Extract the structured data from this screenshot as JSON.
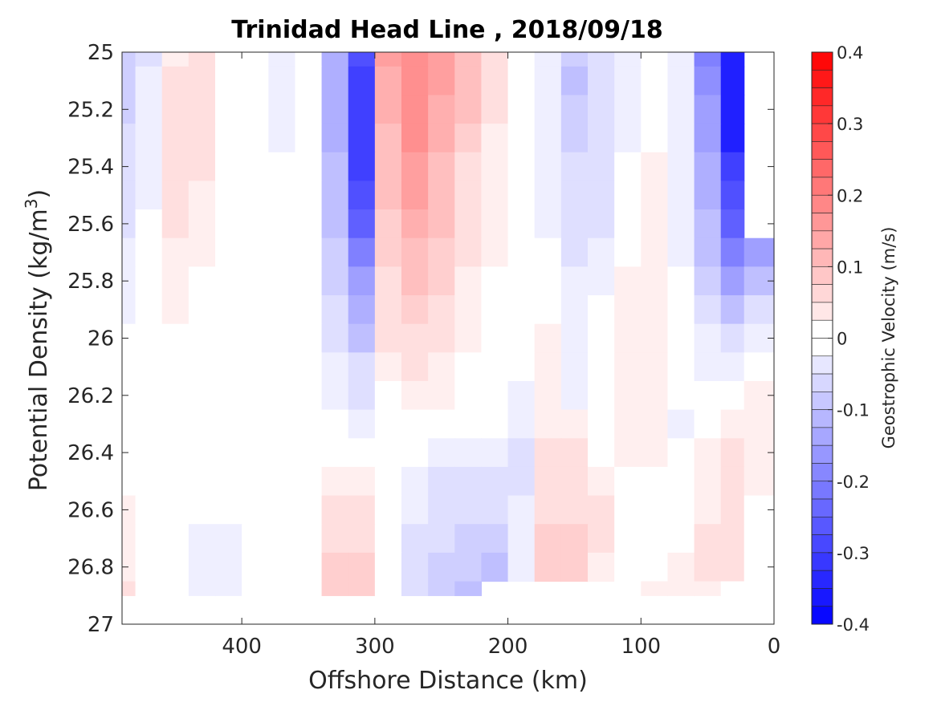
{
  "chart_data": {
    "type": "heatmap",
    "title": "Trinidad Head Line , 2018/09/18",
    "xlabel": "Offshore Distance (km)",
    "ylabel": "Potential Density (kg/m",
    "ylabel_superscript": "3",
    "ylabel_suffix": ")",
    "colorbar_label": "Geostrophic Velocity (m/s)",
    "xlim": [
      490,
      0
    ],
    "ylim": [
      25,
      27
    ],
    "x_reversed": true,
    "y_reversed": true,
    "x_ticks": [
      {
        "value": 400,
        "label": "400"
      },
      {
        "value": 300,
        "label": "300"
      },
      {
        "value": 200,
        "label": "200"
      },
      {
        "value": 100,
        "label": "100"
      },
      {
        "value": 0,
        "label": "0"
      }
    ],
    "y_ticks": [
      {
        "value": 25.0,
        "label": "25"
      },
      {
        "value": 25.2,
        "label": "25.2"
      },
      {
        "value": 25.4,
        "label": "25.4"
      },
      {
        "value": 25.6,
        "label": "25.6"
      },
      {
        "value": 25.8,
        "label": "25.8"
      },
      {
        "value": 26.0,
        "label": "26"
      },
      {
        "value": 26.2,
        "label": "26.2"
      },
      {
        "value": 26.4,
        "label": "26.4"
      },
      {
        "value": 26.6,
        "label": "26.6"
      },
      {
        "value": 26.8,
        "label": "26.8"
      },
      {
        "value": 27.0,
        "label": "27"
      }
    ],
    "colorbar_ticks": [
      {
        "value": 0.4,
        "label": "0.4"
      },
      {
        "value": 0.3,
        "label": "0.3"
      },
      {
        "value": 0.2,
        "label": "0.2"
      },
      {
        "value": 0.1,
        "label": "0.1"
      },
      {
        "value": 0.0,
        "label": "0"
      },
      {
        "value": -0.1,
        "label": "-0.1"
      },
      {
        "value": -0.2,
        "label": "-0.2"
      },
      {
        "value": -0.3,
        "label": "-0.3"
      },
      {
        "value": -0.4,
        "label": "-0.4"
      }
    ],
    "clim": [
      -0.4,
      0.4
    ],
    "contour_step": 0.025,
    "colormap": {
      "negative": "#0000ff",
      "zero": "#ffffff",
      "positive": "#ff0000"
    },
    "x": [
      490,
      470,
      450,
      430,
      410,
      390,
      370,
      350,
      330,
      310,
      290,
      270,
      250,
      230,
      210,
      190,
      170,
      150,
      130,
      110,
      90,
      70,
      50,
      30,
      15
    ],
    "y": [
      25.0,
      25.1,
      25.2,
      25.3,
      25.4,
      25.5,
      25.6,
      25.7,
      25.8,
      25.9,
      26.0,
      26.1,
      26.2,
      26.3,
      26.4,
      26.5,
      26.6,
      26.7,
      26.8,
      26.9
    ],
    "z": [
      [
        -0.08,
        -0.04,
        0.03,
        0.04,
        0.0,
        0.0,
        -0.02,
        0.0,
        -0.12,
        -0.28,
        0.14,
        0.17,
        0.14,
        0.1,
        0.04,
        0.0,
        -0.03,
        -0.08,
        -0.05,
        -0.02,
        0.0,
        -0.02,
        -0.2,
        -0.34,
        null
      ],
      [
        -0.08,
        -0.03,
        0.04,
        0.05,
        0.0,
        0.0,
        -0.02,
        0.0,
        -0.12,
        -0.29,
        0.13,
        0.18,
        0.14,
        0.1,
        0.04,
        0.0,
        -0.03,
        -0.09,
        -0.06,
        -0.03,
        0.0,
        -0.02,
        -0.18,
        -0.34,
        null
      ],
      [
        -0.07,
        -0.03,
        0.05,
        0.05,
        0.0,
        0.0,
        -0.02,
        0.0,
        -0.12,
        -0.3,
        0.12,
        0.18,
        0.13,
        0.09,
        0.04,
        0.0,
        -0.03,
        -0.08,
        -0.06,
        -0.03,
        0.0,
        -0.03,
        -0.16,
        -0.36,
        null
      ],
      [
        -0.06,
        -0.02,
        0.05,
        0.04,
        0.0,
        0.0,
        -0.02,
        0.0,
        -0.12,
        -0.3,
        0.11,
        0.17,
        0.12,
        0.08,
        0.03,
        0.0,
        -0.03,
        -0.07,
        -0.05,
        -0.02,
        0.0,
        -0.03,
        -0.15,
        -0.34,
        null
      ],
      [
        -0.05,
        -0.02,
        0.05,
        0.04,
        0.0,
        0.0,
        -0.01,
        0.0,
        -0.11,
        -0.29,
        0.1,
        0.16,
        0.11,
        0.06,
        0.03,
        0.0,
        -0.02,
        -0.06,
        -0.04,
        0.0,
        0.02,
        -0.03,
        -0.13,
        -0.3,
        null
      ],
      [
        -0.05,
        -0.02,
        0.04,
        0.03,
        0.0,
        0.0,
        0.0,
        0.0,
        -0.1,
        -0.27,
        0.09,
        0.14,
        0.1,
        0.05,
        0.02,
        0.0,
        -0.02,
        -0.05,
        -0.04,
        0.0,
        0.03,
        -0.02,
        -0.12,
        -0.28,
        null
      ],
      [
        -0.04,
        -0.01,
        0.04,
        0.03,
        0.0,
        0.0,
        0.0,
        0.0,
        -0.09,
        -0.24,
        0.08,
        0.13,
        0.09,
        0.04,
        0.02,
        0.0,
        -0.02,
        -0.04,
        -0.04,
        0.01,
        0.03,
        -0.02,
        -0.1,
        -0.24,
        null
      ],
      [
        -0.03,
        -0.01,
        0.03,
        0.02,
        0.0,
        0.0,
        0.0,
        0.0,
        -0.08,
        -0.2,
        0.07,
        0.11,
        0.08,
        0.04,
        0.02,
        0.0,
        0.0,
        -0.04,
        -0.03,
        0.01,
        0.03,
        -0.02,
        -0.09,
        -0.2,
        -0.14
      ],
      [
        -0.03,
        -0.01,
        0.03,
        0.01,
        0.0,
        0.0,
        0.0,
        0.0,
        -0.07,
        -0.16,
        0.06,
        0.1,
        0.07,
        0.03,
        0.01,
        0.0,
        0.0,
        -0.03,
        -0.02,
        0.02,
        0.03,
        -0.01,
        -0.07,
        -0.14,
        -0.1
      ],
      [
        -0.02,
        0.0,
        0.02,
        0.0,
        0.0,
        0.0,
        0.0,
        0.0,
        -0.05,
        -0.12,
        0.05,
        0.08,
        0.06,
        0.02,
        0.0,
        0.0,
        0.01,
        -0.02,
        -0.01,
        0.02,
        0.03,
        -0.01,
        -0.05,
        -0.1,
        -0.06
      ],
      [
        0.0,
        0.0,
        0.0,
        0.0,
        0.0,
        0.0,
        0.0,
        0.0,
        -0.04,
        -0.09,
        0.04,
        0.06,
        0.04,
        0.02,
        0.0,
        0.0,
        0.02,
        -0.02,
        -0.01,
        0.02,
        0.02,
        0.0,
        -0.03,
        -0.06,
        -0.03
      ],
      [
        0.0,
        0.0,
        0.0,
        0.0,
        0.0,
        0.0,
        0.0,
        0.0,
        -0.03,
        -0.06,
        0.02,
        0.04,
        0.03,
        0.01,
        0.0,
        -0.01,
        0.02,
        -0.02,
        -0.01,
        0.02,
        0.02,
        0.0,
        -0.02,
        -0.03,
        0.0
      ],
      [
        0.0,
        0.0,
        0.0,
        0.0,
        0.0,
        0.0,
        0.0,
        0.0,
        -0.02,
        -0.04,
        0.0,
        0.02,
        0.02,
        0.01,
        0.0,
        -0.02,
        0.02,
        -0.02,
        -0.01,
        0.02,
        0.02,
        -0.01,
        0.0,
        0.01,
        0.02
      ],
      [
        0.0,
        0.0,
        0.0,
        0.0,
        0.0,
        0.0,
        0.0,
        0.0,
        0.0,
        -0.02,
        0.0,
        0.0,
        -0.01,
        -0.01,
        0.0,
        -0.03,
        0.03,
        0.02,
        -0.01,
        0.02,
        0.02,
        -0.02,
        0.0,
        0.03,
        0.03
      ],
      [
        0.0,
        0.0,
        0.0,
        0.0,
        0.0,
        0.0,
        0.0,
        0.0,
        0.0,
        0.0,
        0.0,
        -0.01,
        -0.02,
        -0.03,
        -0.03,
        -0.04,
        0.04,
        0.04,
        0.0,
        0.02,
        0.02,
        -0.01,
        0.02,
        0.05,
        0.03
      ],
      [
        0.0,
        0.0,
        0.0,
        0.0,
        0.0,
        0.0,
        0.0,
        0.0,
        0.02,
        0.02,
        0.0,
        -0.02,
        -0.04,
        -0.04,
        -0.04,
        -0.04,
        0.05,
        0.05,
        0.03,
        0.01,
        0.01,
        0.0,
        0.03,
        0.06,
        0.02
      ],
      [
        0.02,
        0.0,
        0.0,
        0.0,
        -0.01,
        0.0,
        0.0,
        0.0,
        0.04,
        0.04,
        0.0,
        -0.03,
        -0.04,
        -0.05,
        -0.06,
        -0.03,
        0.06,
        0.06,
        0.04,
        0.0,
        0.0,
        0.0,
        0.03,
        0.06,
        0.01
      ],
      [
        0.03,
        0.0,
        0.0,
        -0.02,
        -0.02,
        0.0,
        0.0,
        0.0,
        0.06,
        0.06,
        0.0,
        -0.04,
        -0.06,
        -0.07,
        -0.07,
        -0.02,
        0.07,
        0.07,
        0.04,
        0.0,
        0.0,
        0.0,
        0.04,
        0.05,
        0.0
      ],
      [
        0.03,
        0.0,
        0.0,
        -0.02,
        -0.02,
        -0.01,
        0.0,
        0.0,
        0.07,
        0.07,
        0.0,
        -0.05,
        -0.07,
        -0.08,
        -0.09,
        -0.02,
        0.08,
        0.08,
        0.03,
        0.0,
        0.01,
        0.02,
        0.04,
        0.04,
        0.0
      ],
      [
        0.04,
        0.0,
        0.0,
        -0.02,
        -0.02,
        -0.01,
        0.0,
        0.0,
        0.08,
        0.08,
        0.0,
        -0.06,
        -0.08,
        -0.09,
        null,
        null,
        null,
        null,
        null,
        0.0,
        0.02,
        0.02,
        0.03,
        0.0,
        null
      ]
    ]
  }
}
